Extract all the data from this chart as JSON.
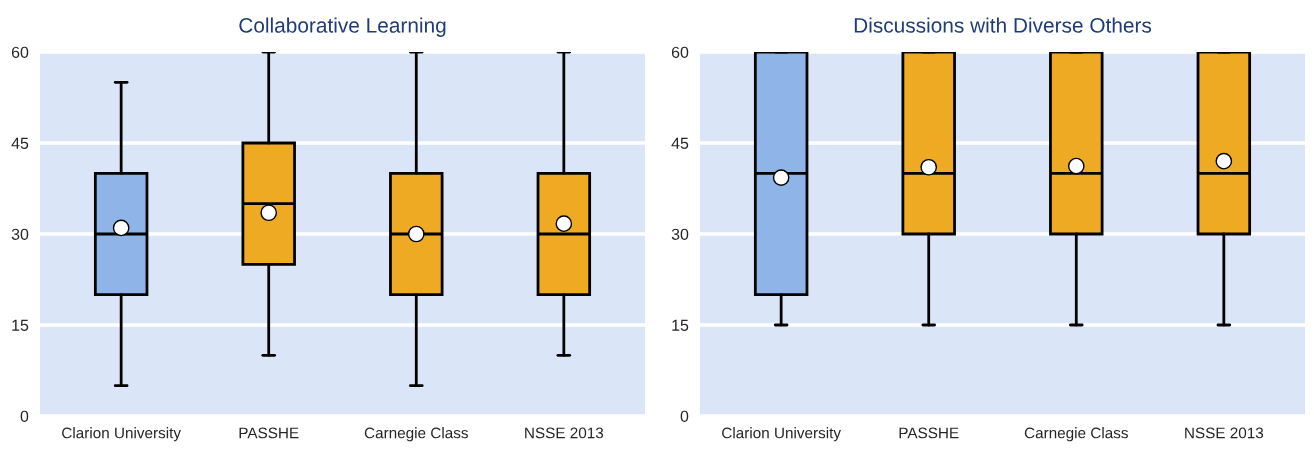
{
  "chart_data": [
    {
      "type": "box",
      "title": "Collaborative Learning",
      "categories": [
        "Clarion University",
        "PASSHE",
        "Carnegie Class",
        "NSSE 2013"
      ],
      "boxes": [
        {
          "low": 5,
          "q1": 20,
          "median": 30,
          "q3": 40,
          "high": 55,
          "mean": 31
        },
        {
          "low": 10,
          "q1": 25,
          "median": 35,
          "q3": 45,
          "high": 60,
          "mean": 33.5
        },
        {
          "low": 5,
          "q1": 20,
          "median": 30,
          "q3": 40,
          "high": 60,
          "mean": 30
        },
        {
          "low": 10,
          "q1": 20,
          "median": 30,
          "q3": 40,
          "high": 60,
          "mean": 31.7
        }
      ],
      "colors": [
        "#8eb4e8",
        "#eeaa22",
        "#eeaa22",
        "#eeaa22"
      ],
      "ylim": [
        0,
        60
      ],
      "yticks": [
        0,
        15,
        30,
        45,
        60
      ],
      "grid": "y"
    },
    {
      "type": "box",
      "title": "Discussions with Diverse Others",
      "categories": [
        "Clarion University",
        "PASSHE",
        "Carnegie Class",
        "NSSE 2013"
      ],
      "boxes": [
        {
          "low": 15,
          "q1": 20,
          "median": 40,
          "q3": 60,
          "high": 60,
          "mean": 39.3
        },
        {
          "low": 15,
          "q1": 30,
          "median": 40,
          "q3": 60,
          "high": 60,
          "mean": 41
        },
        {
          "low": 15,
          "q1": 30,
          "median": 40,
          "q3": 60,
          "high": 60,
          "mean": 41.2
        },
        {
          "low": 15,
          "q1": 30,
          "median": 40,
          "q3": 60,
          "high": 60,
          "mean": 42
        }
      ],
      "colors": [
        "#8eb4e8",
        "#eeaa22",
        "#eeaa22",
        "#eeaa22"
      ],
      "ylim": [
        0,
        60
      ],
      "yticks": [
        0,
        15,
        30,
        45,
        60
      ],
      "grid": "y"
    }
  ]
}
